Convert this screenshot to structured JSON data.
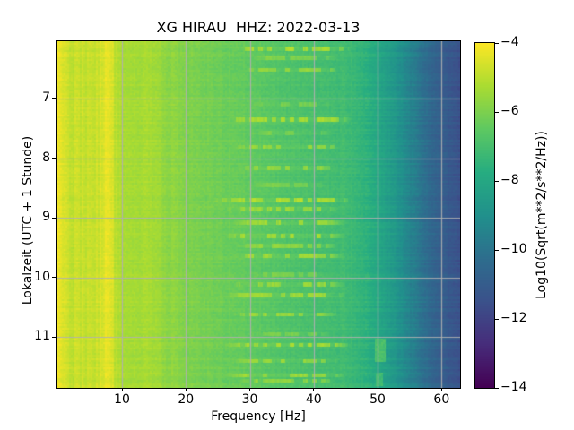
{
  "chart_data": {
    "type": "heatmap",
    "title": "XG HIRAU  HHZ: 2022-03-13",
    "xlabel": "Frequency [Hz]",
    "ylabel": "Lokalzeit (UTC + 1 Stunde)",
    "colorbar_label": "Log10(Sqrt(m**2/s**2/Hz))",
    "colormap": "viridis",
    "clim": [
      -14,
      -4
    ],
    "x_range": [
      -0.25,
      62.9
    ],
    "y_range": [
      6.04,
      11.85
    ],
    "x_ticks": [
      10,
      20,
      30,
      40,
      50,
      60
    ],
    "y_ticks": [
      7,
      8,
      9,
      10,
      11
    ],
    "colorbar_ticks": [
      -4,
      -6,
      -8,
      -10,
      -12,
      -14
    ],
    "colorbar_tick_labels": [
      "−4",
      "−6",
      "−8",
      "−10",
      "−12",
      "−14"
    ],
    "grid": true,
    "grid_color": "#b0b0b0",
    "colormap_stops": [
      [
        0.0,
        "#440154"
      ],
      [
        0.125,
        "#472d7b"
      ],
      [
        0.25,
        "#3b528b"
      ],
      [
        0.375,
        "#2e6e8e"
      ],
      [
        0.5,
        "#21918c"
      ],
      [
        0.625,
        "#27ad81"
      ],
      [
        0.75,
        "#5ec962"
      ],
      [
        0.875,
        "#aadc32"
      ],
      [
        1.0,
        "#fde725"
      ]
    ],
    "freq_profile": [
      [
        -0.25,
        -4.2
      ],
      [
        0.5,
        -4.5
      ],
      [
        1.5,
        -4.8
      ],
      [
        3,
        -4.85
      ],
      [
        5,
        -4.8
      ],
      [
        6.5,
        -4.72
      ],
      [
        7.3,
        -4.45
      ],
      [
        7.8,
        -4.35
      ],
      [
        8.3,
        -4.5
      ],
      [
        9.0,
        -4.95
      ],
      [
        10,
        -5.25
      ],
      [
        12,
        -5.35
      ],
      [
        14,
        -5.3
      ],
      [
        16,
        -5.5
      ],
      [
        17,
        -5.75
      ],
      [
        18,
        -5.7
      ],
      [
        20,
        -5.95
      ],
      [
        23,
        -6.1
      ],
      [
        26,
        -6.25
      ],
      [
        30,
        -6.45
      ],
      [
        34,
        -6.7
      ],
      [
        38,
        -6.9
      ],
      [
        42,
        -7.05
      ],
      [
        45,
        -7.15
      ],
      [
        47,
        -7.35
      ],
      [
        48.5,
        -7.6
      ],
      [
        50,
        -7.95
      ],
      [
        51.5,
        -8.35
      ],
      [
        53,
        -8.8
      ],
      [
        55,
        -9.45
      ],
      [
        57,
        -10.1
      ],
      [
        59,
        -10.7
      ],
      [
        61,
        -11.15
      ],
      [
        62.9,
        -11.5
      ]
    ],
    "burst_rows": [
      {
        "t": 6.17,
        "f0": 27,
        "f1": 46,
        "amp": 0.95
      },
      {
        "t": 6.32,
        "f0": 30,
        "f1": 44,
        "amp": 0.55
      },
      {
        "t": 6.52,
        "f0": 28,
        "f1": 45,
        "amp": 0.75
      },
      {
        "t": 7.1,
        "f0": 30,
        "f1": 43,
        "amp": 0.45
      },
      {
        "t": 7.35,
        "f0": 26,
        "f1": 46,
        "amp": 0.95
      },
      {
        "t": 7.58,
        "f0": 30,
        "f1": 43,
        "amp": 0.5
      },
      {
        "t": 7.81,
        "f0": 27,
        "f1": 45,
        "amp": 0.8
      },
      {
        "t": 8.17,
        "f0": 28,
        "f1": 44,
        "amp": 0.75
      },
      {
        "t": 8.45,
        "f0": 30,
        "f1": 42,
        "amp": 0.45
      },
      {
        "t": 8.7,
        "f0": 24,
        "f1": 46,
        "amp": 1.0
      },
      {
        "t": 8.86,
        "f0": 26,
        "f1": 44,
        "amp": 0.8
      },
      {
        "t": 9.08,
        "f0": 27,
        "f1": 45,
        "amp": 0.85
      },
      {
        "t": 9.3,
        "f0": 26,
        "f1": 45,
        "amp": 0.9
      },
      {
        "t": 9.47,
        "f0": 28,
        "f1": 44,
        "amp": 0.7
      },
      {
        "t": 9.63,
        "f0": 27,
        "f1": 45,
        "amp": 0.85
      },
      {
        "t": 9.95,
        "f0": 30,
        "f1": 43,
        "amp": 0.5
      },
      {
        "t": 10.12,
        "f0": 27,
        "f1": 45,
        "amp": 0.8
      },
      {
        "t": 10.3,
        "f0": 26,
        "f1": 45,
        "amp": 0.85
      },
      {
        "t": 10.62,
        "f0": 27,
        "f1": 44,
        "amp": 0.8
      },
      {
        "t": 10.95,
        "f0": 30,
        "f1": 43,
        "amp": 0.5
      },
      {
        "t": 11.13,
        "f0": 26,
        "f1": 46,
        "amp": 0.9
      },
      {
        "t": 11.4,
        "f0": 27,
        "f1": 44,
        "amp": 0.75
      },
      {
        "t": 11.64,
        "f0": 26,
        "f1": 45,
        "amp": 0.85
      },
      {
        "t": 11.73,
        "f0": 28,
        "f1": 44,
        "amp": 0.7
      }
    ],
    "patches": [
      {
        "f0": 49.6,
        "f1": 51.2,
        "t0": 11.02,
        "t1": 11.42,
        "value": -6.9
      },
      {
        "f0": 49.7,
        "f1": 50.9,
        "t0": 11.6,
        "t1": 11.82,
        "value": -7.1
      }
    ],
    "noise": {
      "cell": 0.15,
      "row": 0.11,
      "row_dark_side": 0.22,
      "col_low": 0.2,
      "col_high": 0.08
    }
  }
}
